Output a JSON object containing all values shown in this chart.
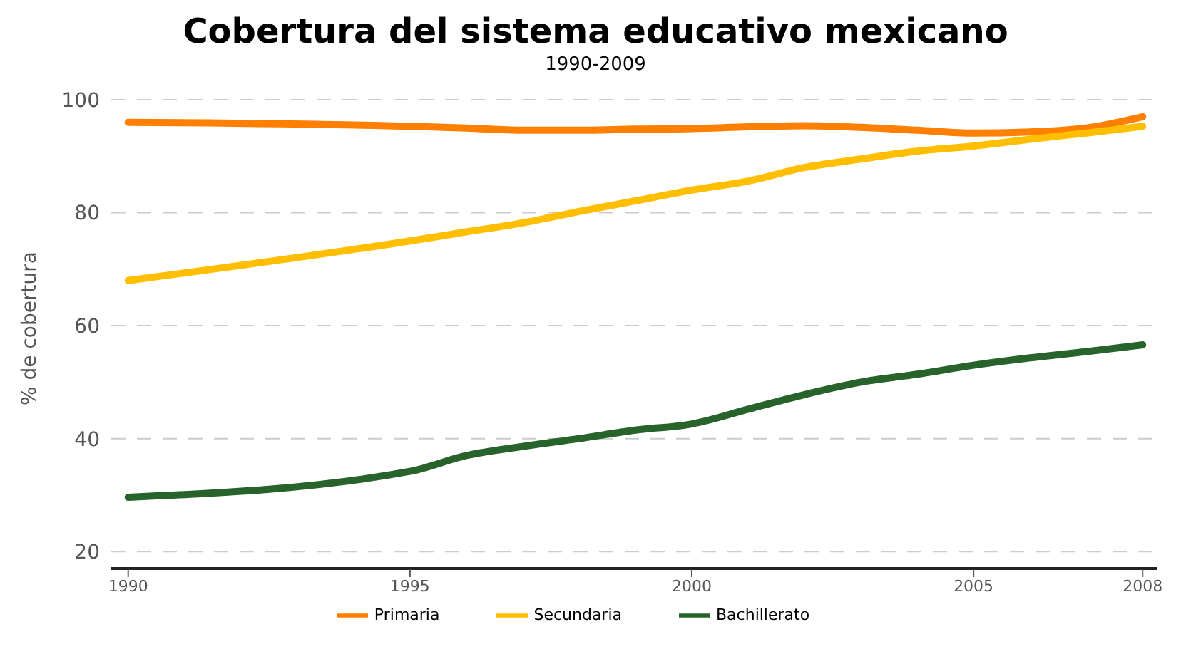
{
  "chart_data": {
    "type": "line",
    "title": "Cobertura del sistema educativo mexicano",
    "subtitle": "1990-2009",
    "ylabel": "% de cobertura",
    "x": [
      1990,
      1995,
      1996,
      1997,
      1998,
      1999,
      2000,
      2001,
      2002,
      2003,
      2004,
      2005,
      2006,
      2007,
      2008
    ],
    "series": [
      {
        "name": "Primaria",
        "color": "#ff8000",
        "values": [
          96,
          95.3,
          95,
          94.6,
          94.6,
          94.8,
          94.9,
          95.2,
          95.4,
          95.1,
          94.6,
          94.1,
          94.3,
          95,
          97
        ]
      },
      {
        "name": "Secundaria",
        "color": "#ffbf00",
        "values": [
          68,
          75,
          76.6,
          78.2,
          80.2,
          82.1,
          84,
          85.6,
          88,
          89.5,
          90.9,
          91.8,
          93,
          94.1,
          95.3
        ]
      },
      {
        "name": "Bachillerato",
        "color": "#27632a",
        "values": [
          29.6,
          34.2,
          37,
          38.6,
          40,
          41.5,
          42.6,
          45.2,
          47.8,
          50,
          51.4,
          53,
          54.3,
          55.4,
          56.6
        ]
      }
    ],
    "xlim": [
      1989.7,
      2008.25
    ],
    "xticks": [
      1990,
      1995,
      2000,
      2005,
      2008
    ],
    "ylim": [
      17,
      100
    ],
    "yticks": [
      20,
      40,
      60,
      80,
      100
    ],
    "grid": "y",
    "legend": "bottom",
    "marker": "none",
    "line_style": "solid"
  }
}
